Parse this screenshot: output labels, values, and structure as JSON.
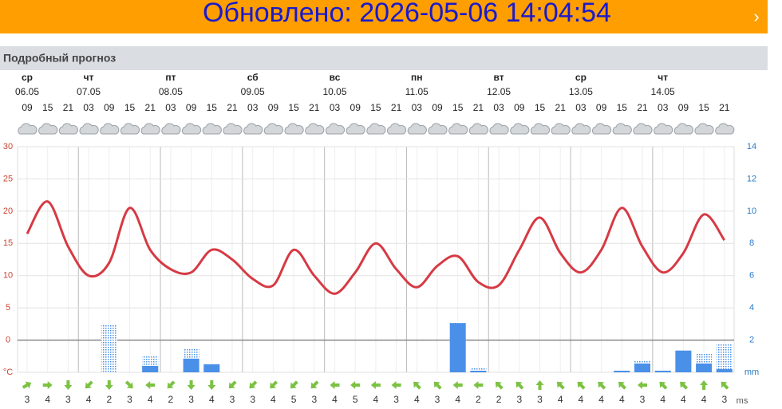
{
  "banner": {
    "text": "Обновлено: 2026-05-06 14:04:54",
    "arrow": "›"
  },
  "section_title": "Подробный прогноз",
  "days": [
    {
      "name": "ср",
      "date": "06.05"
    },
    {
      "name": "чт",
      "date": "07.05"
    },
    {
      "name": "пт",
      "date": "08.05"
    },
    {
      "name": "сб",
      "date": "09.05"
    },
    {
      "name": "вс",
      "date": "10.05"
    },
    {
      "name": "пн",
      "date": "11.05"
    },
    {
      "name": "вт",
      "date": "12.05"
    },
    {
      "name": "ср",
      "date": "13.05"
    },
    {
      "name": "чт",
      "date": "14.05"
    }
  ],
  "chart_data": {
    "type": "line",
    "categories": [
      "09",
      "15",
      "21",
      "03",
      "09",
      "15",
      "21",
      "03",
      "09",
      "15",
      "21",
      "03",
      "09",
      "15",
      "21",
      "03",
      "09",
      "15",
      "21",
      "03",
      "09",
      "15",
      "21",
      "03",
      "09",
      "15",
      "21",
      "03",
      "09",
      "15",
      "21",
      "03",
      "09",
      "15",
      "21"
    ],
    "series": [
      {
        "color": "#d63a44",
        "values": [
          16.5,
          21.5,
          14.5,
          10,
          12,
          20.5,
          14,
          11,
          10.5,
          14,
          12.5,
          9.5,
          8.5,
          14,
          10,
          7.2,
          10.5,
          15,
          11,
          8.2,
          11.5,
          13,
          9,
          8.5,
          14,
          19,
          13.5,
          10.5,
          14,
          20.5,
          14.5,
          10.5,
          13.5,
          19.5,
          15.5
        ]
      },
      {
        "type": "bar",
        "axis": "y2",
        "color": "#4a90e8",
        "values": [
          0,
          0,
          0,
          0,
          0,
          0,
          0.4,
          0,
          0.85,
          0.5,
          0,
          0,
          0,
          0,
          0,
          0,
          0,
          0,
          0,
          0,
          0,
          3.05,
          0.1,
          0,
          0,
          0,
          0,
          0,
          0,
          0.1,
          0.55,
          0.1,
          1.35,
          0.55,
          0.2
        ],
        "max_values": [
          0,
          0,
          0,
          0,
          3,
          0,
          1,
          0,
          1.45,
          0.5,
          0,
          0,
          0,
          0,
          0,
          0,
          0,
          0,
          0,
          0,
          0,
          3.1,
          0.25,
          0,
          0,
          0,
          0,
          0,
          0,
          0.15,
          0.7,
          0.1,
          1.35,
          1.15,
          1.75
        ]
      }
    ],
    "ylim": [
      -5,
      30
    ],
    "yticks": [
      {
        "value": -5,
        "label": "°C"
      },
      0,
      5,
      10,
      15,
      20,
      25,
      30
    ],
    "y2lim": [
      0,
      14
    ],
    "y2ticks": [
      {
        "value": 0,
        "label": "mm"
      },
      2,
      4,
      6,
      8,
      10,
      12,
      14
    ],
    "grid": true
  },
  "wind": {
    "unit": "ms",
    "color": "#7cc242",
    "speeds": [
      3,
      4,
      3,
      4,
      2,
      3,
      4,
      2,
      3,
      4,
      3,
      3,
      4,
      5,
      3,
      4,
      5,
      4,
      3,
      4,
      3,
      4,
      2,
      2,
      3,
      3,
      4,
      4,
      4,
      4,
      3,
      4,
      4,
      4,
      3
    ],
    "directions": [
      60,
      90,
      180,
      225,
      180,
      135,
      270,
      225,
      180,
      180,
      225,
      225,
      225,
      225,
      225,
      270,
      270,
      270,
      270,
      315,
      315,
      270,
      270,
      315,
      315,
      0,
      315,
      315,
      315,
      315,
      270,
      315,
      315,
      0,
      315
    ]
  }
}
